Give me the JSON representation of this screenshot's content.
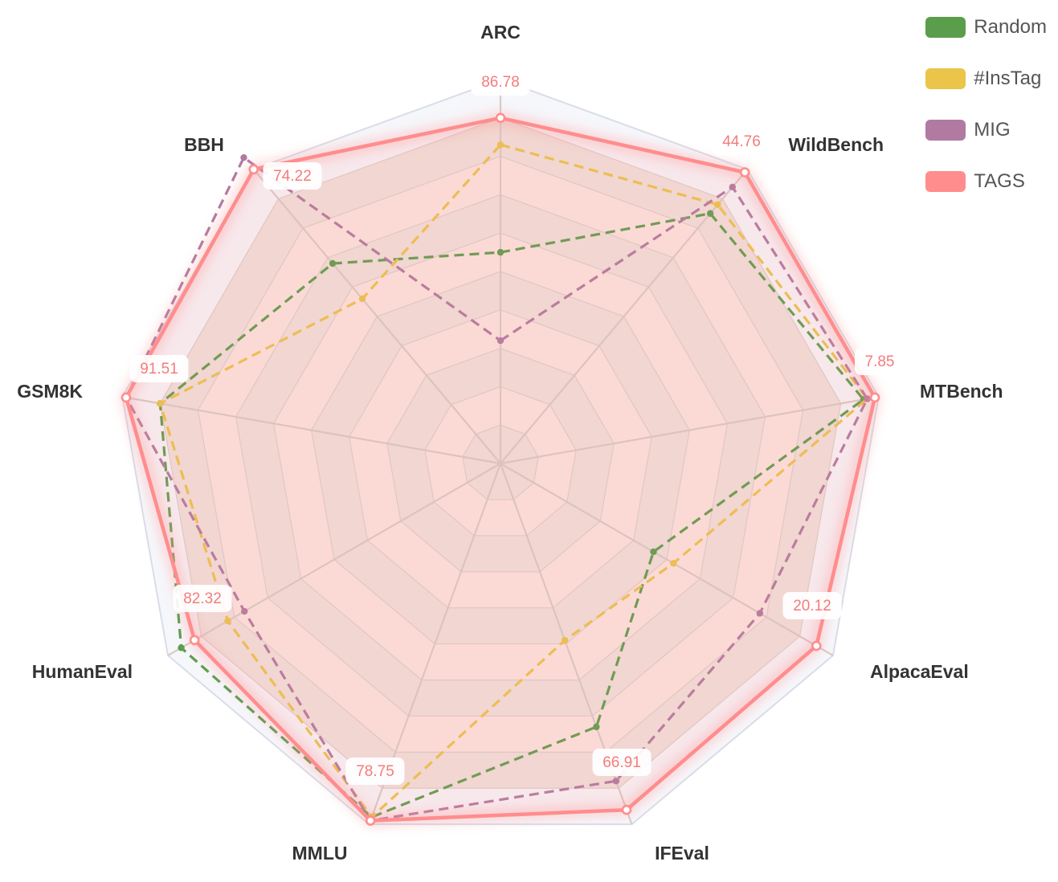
{
  "chart_data": {
    "type": "radar",
    "indicators": [
      "ARC",
      "WildBench",
      "MTBench",
      "AlpacaEval",
      "IFEval",
      "MMLU",
      "HumanEval",
      "GSM8K",
      "BBH"
    ],
    "rel_max": [
      1,
      1,
      1,
      1,
      1,
      1,
      1,
      1,
      1
    ],
    "series": [
      {
        "name": "Random",
        "color": "#5a9e4b",
        "style": "dashed",
        "rel": [
          0.55,
          0.85,
          0.96,
          0.46,
          0.73,
          0.98,
          0.96,
          0.9,
          0.68
        ]
      },
      {
        "name": "#InsTag",
        "color": "#ebc54a",
        "style": "dashed",
        "rel": [
          0.83,
          0.88,
          0.97,
          0.52,
          0.49,
          0.98,
          0.82,
          0.9,
          0.56
        ]
      },
      {
        "name": "MIG",
        "color": "#b07aa1",
        "style": "dashed",
        "rel": [
          0.32,
          0.94,
          0.97,
          0.78,
          0.88,
          0.99,
          0.77,
          0.99,
          1.04
        ]
      },
      {
        "name": "TAGS",
        "color": "#ff8d8d",
        "style": "solid",
        "rel": [
          0.9,
          0.99,
          0.99,
          0.95,
          0.96,
          0.99,
          0.92,
          0.99,
          1.0
        ],
        "labels": [
          "86.78",
          "44.76",
          "7.85",
          "20.12",
          "66.91",
          "78.75",
          "82.32",
          "91.51",
          "74.22"
        ]
      }
    ],
    "legend_position": "top-right"
  }
}
